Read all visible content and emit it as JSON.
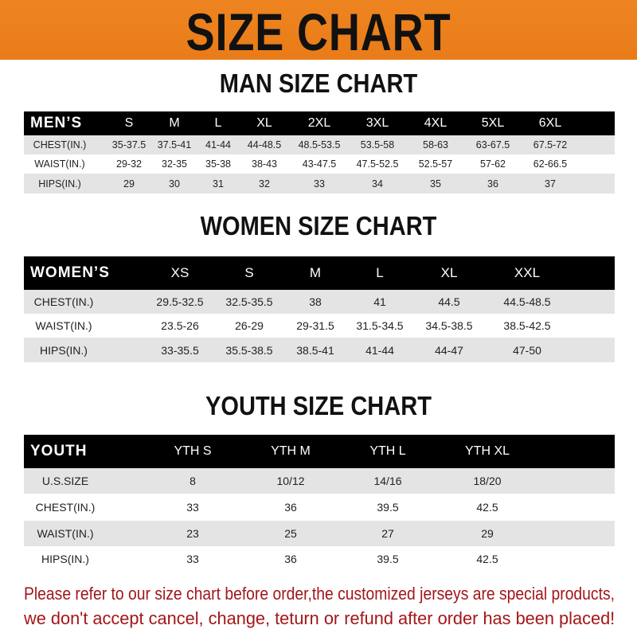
{
  "banner": {
    "title": "SIZE CHART",
    "color": "#ec8020"
  },
  "men": {
    "title": "MAN SIZE CHART",
    "header": "MEN’S",
    "sizes": [
      "S",
      "M",
      "L",
      "XL",
      "2XL",
      "3XL",
      "4XL",
      "5XL",
      "6XL"
    ],
    "rows": [
      {
        "label": "CHEST(IN.)",
        "values": [
          "35-37.5",
          "37.5-41",
          "41-44",
          "44-48.5",
          "48.5-53.5",
          "53.5-58",
          "58-63",
          "63-67.5",
          "67.5-72"
        ]
      },
      {
        "label": "WAIST(IN.)",
        "values": [
          "29-32",
          "32-35",
          "35-38",
          "38-43",
          "43-47.5",
          "47.5-52.5",
          "52.5-57",
          "57-62",
          "62-66.5"
        ]
      },
      {
        "label": "HIPS(IN.)",
        "values": [
          "29",
          "30",
          "31",
          "32",
          "33",
          "34",
          "35",
          "36",
          "37"
        ]
      }
    ]
  },
  "women": {
    "title": "WOMEN SIZE CHART",
    "header": "WOMEN’S",
    "sizes": [
      "XS",
      "S",
      "M",
      "L",
      "XL",
      "XXL"
    ],
    "rows": [
      {
        "label": "CHEST(IN.)",
        "values": [
          "29.5-32.5",
          "32.5-35.5",
          "38",
          "41",
          "44.5",
          "44.5-48.5"
        ]
      },
      {
        "label": "WAIST(IN.)",
        "values": [
          "23.5-26",
          "26-29",
          "29-31.5",
          "31.5-34.5",
          "34.5-38.5",
          "38.5-42.5"
        ]
      },
      {
        "label": "HIPS(IN.)",
        "values": [
          "33-35.5",
          "35.5-38.5",
          "38.5-41",
          "41-44",
          "44-47",
          "47-50"
        ]
      }
    ]
  },
  "youth": {
    "title": "YOUTH SIZE CHART",
    "header": "YOUTH",
    "sizes": [
      "YTH S",
      "YTH M",
      "YTH L",
      "YTH XL"
    ],
    "rows": [
      {
        "label": "U.S.SIZE",
        "values": [
          "8",
          "10/12",
          "14/16",
          "18/20"
        ]
      },
      {
        "label": "CHEST(IN.)",
        "values": [
          "33",
          "36",
          "39.5",
          "42.5"
        ]
      },
      {
        "label": "WAIST(IN.)",
        "values": [
          "23",
          "25",
          "27",
          "29"
        ]
      },
      {
        "label": "HIPS(IN.)",
        "values": [
          "33",
          "36",
          "39.5",
          "42.5"
        ]
      }
    ]
  },
  "note": {
    "line1": "Please refer to our size chart before order,the customized jerseys are special products,",
    "line2": "we don't accept cancel, change, teturn or refund after order has been placed!",
    "color": "#a3161a"
  }
}
